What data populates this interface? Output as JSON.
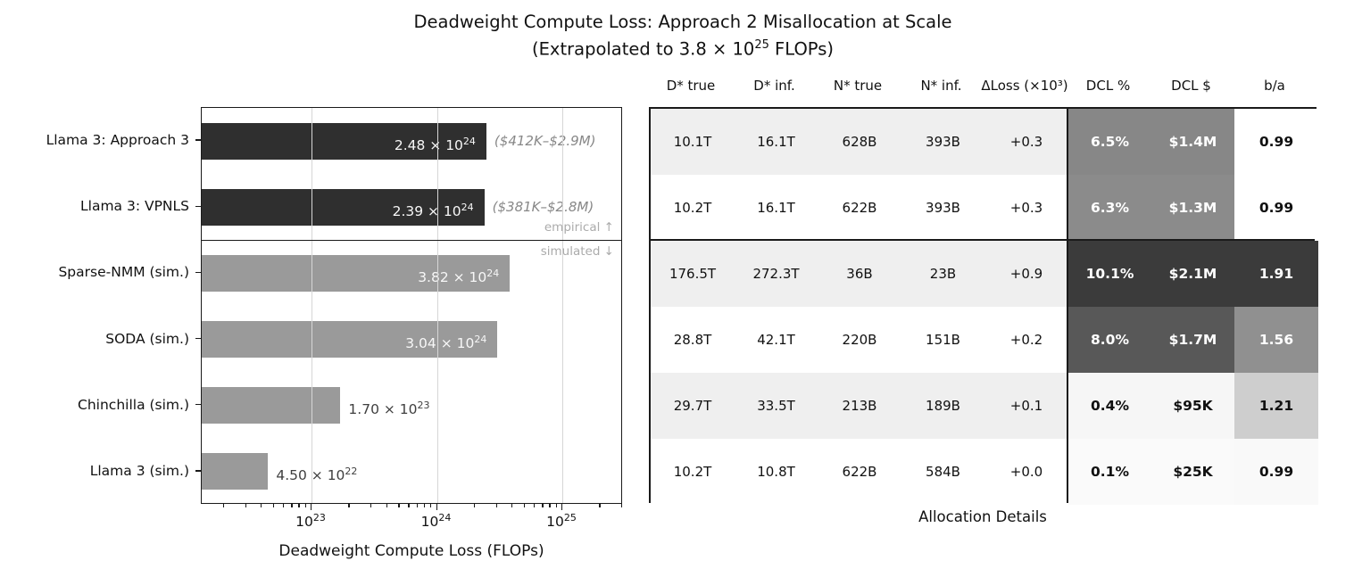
{
  "title": {
    "line1": "Deadweight Compute Loss: Approach 2 Misallocation at Scale",
    "line2_prefix": "(Extrapolated to 3.8 × 10",
    "line2_exp": "25",
    "line2_suffix": " FLOPs)"
  },
  "chart_data": [
    {
      "type": "bar",
      "orientation": "horizontal",
      "xlabel": "Deadweight Compute Loss (FLOPs)",
      "x_scale": "log",
      "x_range": [
        1.33e+22,
        3.05e+25
      ],
      "x_ticks": [
        {
          "value": 1e+23,
          "base": "10",
          "exp": "23"
        },
        {
          "value": 1e+24,
          "base": "10",
          "exp": "24"
        },
        {
          "value": 1e+25,
          "base": "10",
          "exp": "25"
        }
      ],
      "grid": "vertical-major",
      "categories": [
        "Llama 3: Approach 3",
        "Llama 3: VPNLS",
        "Sparse-NMM (sim.)",
        "SODA (sim.)",
        "Chinchilla (sim.)",
        "Llama 3 (sim.)"
      ],
      "values": [
        2.48e+24,
        2.39e+24,
        3.82e+24,
        3.04e+24,
        1.7e+23,
        4.5e+22
      ],
      "value_labels": [
        {
          "mantissa": "2.48",
          "exp": "24",
          "inside": true
        },
        {
          "mantissa": "2.39",
          "exp": "24",
          "inside": true
        },
        {
          "mantissa": "3.82",
          "exp": "24",
          "inside": true
        },
        {
          "mantissa": "3.04",
          "exp": "24",
          "inside": true
        },
        {
          "mantissa": "1.70",
          "exp": "23",
          "inside": false
        },
        {
          "mantissa": "4.50",
          "exp": "22",
          "inside": false
        }
      ],
      "groups": [
        "empirical",
        "empirical",
        "simulated",
        "simulated",
        "simulated",
        "simulated"
      ],
      "bar_colors": {
        "empirical": "#2f2f2f",
        "simulated": "#9a9a9a"
      },
      "annotations": [
        {
          "row": 0,
          "text": "($412K–$2.9M)"
        },
        {
          "row": 1,
          "text": "($381K–$2.8M)"
        }
      ],
      "group_labels": {
        "empirical": "empirical ↑",
        "simulated": "simulated ↓"
      },
      "gridline_color": "#d6d6d6"
    },
    {
      "type": "table",
      "title": "Allocation Details",
      "columns": [
        "D* true",
        "D* inf.",
        "N* true",
        "N* inf.",
        "ΔLoss (×10³)",
        "DCL %",
        "DCL $",
        "b/a"
      ],
      "rows": [
        {
          "cells": [
            "10.1T",
            "16.1T",
            "628B",
            "393B",
            "+0.3"
          ],
          "dcl_pct": "6.5%",
          "dcl_usd": "$1.4M",
          "ba": "0.99",
          "stripe": "#efefef",
          "dcl_bg": "#878787",
          "dcl_fg": "#ffffff",
          "ba_bg": "#ffffff",
          "ba_fg": "#111111"
        },
        {
          "cells": [
            "10.2T",
            "16.1T",
            "622B",
            "393B",
            "+0.3"
          ],
          "dcl_pct": "6.3%",
          "dcl_usd": "$1.3M",
          "ba": "0.99",
          "stripe": "#ffffff",
          "dcl_bg": "#8b8b8b",
          "dcl_fg": "#ffffff",
          "ba_bg": "#ffffff",
          "ba_fg": "#111111"
        },
        {
          "cells": [
            "176.5T",
            "272.3T",
            "36B",
            "23B",
            "+0.9"
          ],
          "dcl_pct": "10.1%",
          "dcl_usd": "$2.1M",
          "ba": "1.91",
          "stripe": "#efefef",
          "dcl_bg": "#3b3b3b",
          "dcl_fg": "#ffffff",
          "ba_bg": "#3b3b3b",
          "ba_fg": "#ffffff"
        },
        {
          "cells": [
            "28.8T",
            "42.1T",
            "220B",
            "151B",
            "+0.2"
          ],
          "dcl_pct": "8.0%",
          "dcl_usd": "$1.7M",
          "ba": "1.56",
          "stripe": "#ffffff",
          "dcl_bg": "#585858",
          "dcl_fg": "#ffffff",
          "ba_bg": "#909090",
          "ba_fg": "#ffffff"
        },
        {
          "cells": [
            "29.7T",
            "33.5T",
            "213B",
            "189B",
            "+0.1"
          ],
          "dcl_pct": "0.4%",
          "dcl_usd": "$95K",
          "ba": "1.21",
          "stripe": "#efefef",
          "dcl_bg": "#f6f6f6",
          "dcl_fg": "#111111",
          "ba_bg": "#cecece",
          "ba_fg": "#111111"
        },
        {
          "cells": [
            "10.2T",
            "10.8T",
            "622B",
            "584B",
            "+0.0"
          ],
          "dcl_pct": "0.1%",
          "dcl_usd": "$25K",
          "ba": "0.99",
          "stripe": "#ffffff",
          "dcl_bg": "#fafafa",
          "dcl_fg": "#111111",
          "ba_bg": "#f9f9f9",
          "ba_fg": "#111111"
        }
      ]
    }
  ]
}
